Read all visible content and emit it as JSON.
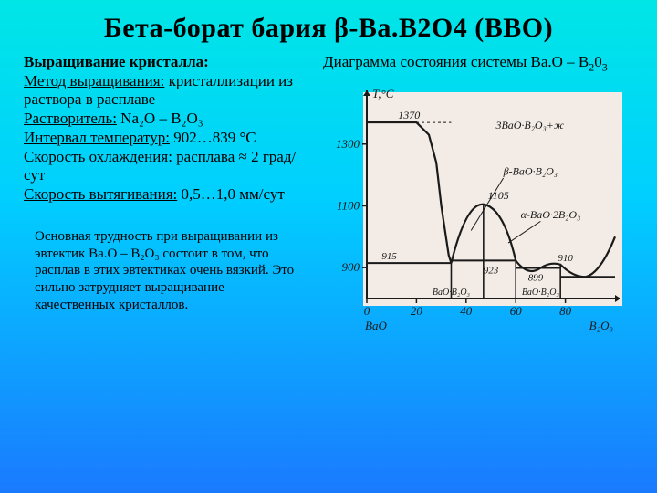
{
  "title": "Бета-борат бария β-Ba.B2O4 (BBO)",
  "left": {
    "heading": "Выращивание кристалла:",
    "method_label": "Метод выращивания:",
    "method_value": " кристаллизации из раствора в расплаве",
    "solvent_label": "Растворитель:",
    "solvent_value": " Na₂O – B₂O₃",
    "temp_label": "Интервал температур:",
    "temp_value": " 902…839 °С",
    "cool_label": "Скорость охлаждения:",
    "cool_value": " расплава ≈ 2 град/сут",
    "pull_label": "Скорость вытягивания:",
    "pull_value": " 0,5…1,0 мм/сут"
  },
  "note": "Основная трудность при выращивании из эвтектик Ba.O – B₂O₃ состоит в том, что расплав в этих эвтектиках очень вязкий. Это сильно затрудняет выращивание качественных кристаллов.",
  "diagram": {
    "caption_prefix": "Диаграмма состояния системы Ba.O – B",
    "caption_suffix": "0",
    "y_axis_label": "T,°C",
    "x_left_label": "BaO",
    "x_right_label": "B₂O₃",
    "y_ticks": [
      900,
      1100,
      1300
    ],
    "y_extra": 1370,
    "x_ticks": [
      0,
      20,
      40,
      60,
      80
    ],
    "annot_top": "3BaO·B₂O₃+ж",
    "annot_beta": "β-BaO·B₂O₃",
    "annot_alpha": "α-BaO·2B₂O₃",
    "peak_value": 1105,
    "val_left_shoulder": 915,
    "val_923": 923,
    "val_899": 899,
    "val_910": 910,
    "bottom_left": "BaO·B₂O₃",
    "bottom_right": "BaO·B₂O₃",
    "colors": {
      "bg": "#f3ece6",
      "ink": "#1a1a1a"
    }
  }
}
